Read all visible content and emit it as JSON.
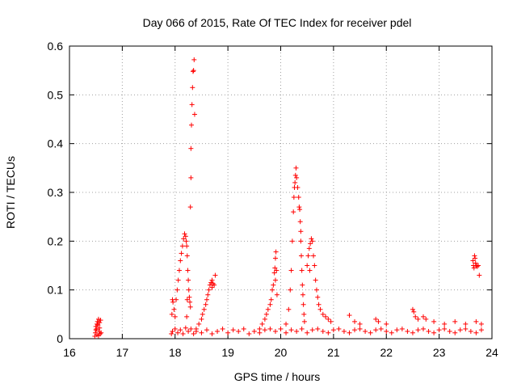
{
  "chart_data": {
    "type": "scatter",
    "title": "Day 066 of 2015, Rate Of TEC Index for receiver pdel",
    "xlabel": "GPS time / hours",
    "ylabel": "ROTI / TECUs",
    "xlim": [
      16,
      24
    ],
    "ylim": [
      0,
      0.6
    ],
    "xticks": [
      "16",
      "17",
      "18",
      "19",
      "20",
      "21",
      "22",
      "23",
      "24"
    ],
    "yticks": [
      "0",
      "0.1",
      "0.2",
      "0.3",
      "0.4",
      "0.5",
      "0.6"
    ],
    "grid": true,
    "marker": "+",
    "series": [
      {
        "name": "ROTI",
        "color": "#ff0000",
        "points": [
          [
            16.48,
            0.005
          ],
          [
            16.49,
            0.012
          ],
          [
            16.5,
            0.018
          ],
          [
            16.5,
            0.025
          ],
          [
            16.51,
            0.02
          ],
          [
            16.52,
            0.03
          ],
          [
            16.53,
            0.035
          ],
          [
            16.54,
            0.028
          ],
          [
            16.55,
            0.04
          ],
          [
            16.56,
            0.015
          ],
          [
            16.57,
            0.022
          ],
          [
            16.58,
            0.01
          ],
          [
            16.59,
            0.038
          ],
          [
            16.6,
            0.012
          ],
          [
            16.52,
            0.008
          ],
          [
            16.55,
            0.006
          ],
          [
            16.57,
            0.033
          ],
          [
            17.93,
            0.01
          ],
          [
            17.94,
            0.05
          ],
          [
            17.95,
            0.08
          ],
          [
            17.96,
            0.075
          ],
          [
            17.98,
            0.06
          ],
          [
            18.0,
            0.045
          ],
          [
            18.02,
            0.08
          ],
          [
            18.04,
            0.1
          ],
          [
            18.06,
            0.12
          ],
          [
            18.08,
            0.14
          ],
          [
            18.1,
            0.16
          ],
          [
            18.12,
            0.175
          ],
          [
            18.14,
            0.19
          ],
          [
            18.16,
            0.205
          ],
          [
            18.18,
            0.215
          ],
          [
            18.2,
            0.21
          ],
          [
            18.21,
            0.2
          ],
          [
            18.22,
            0.19
          ],
          [
            18.23,
            0.17
          ],
          [
            18.24,
            0.14
          ],
          [
            18.25,
            0.12
          ],
          [
            18.26,
            0.1
          ],
          [
            18.27,
            0.085
          ],
          [
            18.28,
            0.075
          ],
          [
            18.29,
            0.065
          ],
          [
            18.23,
            0.08
          ],
          [
            18.22,
            0.045
          ],
          [
            18.29,
            0.27
          ],
          [
            18.3,
            0.33
          ],
          [
            18.3,
            0.39
          ],
          [
            18.31,
            0.438
          ],
          [
            18.32,
            0.48
          ],
          [
            18.33,
            0.515
          ],
          [
            18.34,
            0.548
          ],
          [
            18.35,
            0.55
          ],
          [
            18.36,
            0.572
          ],
          [
            18.37,
            0.46
          ],
          [
            18.4,
            0.02
          ],
          [
            18.45,
            0.03
          ],
          [
            18.5,
            0.04
          ],
          [
            18.52,
            0.05
          ],
          [
            18.55,
            0.06
          ],
          [
            18.58,
            0.07
          ],
          [
            18.6,
            0.08
          ],
          [
            18.62,
            0.09
          ],
          [
            18.64,
            0.1
          ],
          [
            18.66,
            0.11
          ],
          [
            18.68,
            0.115
          ],
          [
            18.7,
            0.12
          ],
          [
            18.72,
            0.113
          ],
          [
            18.74,
            0.11
          ],
          [
            18.76,
            0.13
          ],
          [
            18.7,
            0.105
          ],
          [
            19.6,
            0.02
          ],
          [
            19.65,
            0.03
          ],
          [
            19.7,
            0.04
          ],
          [
            19.73,
            0.05
          ],
          [
            19.76,
            0.06
          ],
          [
            19.8,
            0.07
          ],
          [
            19.82,
            0.08
          ],
          [
            19.84,
            0.1
          ],
          [
            19.86,
            0.11
          ],
          [
            19.88,
            0.135
          ],
          [
            19.89,
            0.145
          ],
          [
            19.9,
            0.165
          ],
          [
            19.91,
            0.178
          ],
          [
            19.92,
            0.14
          ],
          [
            19.9,
            0.12
          ],
          [
            19.93,
            0.09
          ],
          [
            20.1,
            0.03
          ],
          [
            20.15,
            0.06
          ],
          [
            20.18,
            0.1
          ],
          [
            20.2,
            0.14
          ],
          [
            20.22,
            0.2
          ],
          [
            20.24,
            0.26
          ],
          [
            20.25,
            0.29
          ],
          [
            20.26,
            0.31
          ],
          [
            20.27,
            0.32
          ],
          [
            20.28,
            0.335
          ],
          [
            20.29,
            0.35
          ],
          [
            20.3,
            0.33
          ],
          [
            20.32,
            0.31
          ],
          [
            20.34,
            0.29
          ],
          [
            20.35,
            0.27
          ],
          [
            20.36,
            0.265
          ],
          [
            20.37,
            0.24
          ],
          [
            20.38,
            0.2
          ],
          [
            20.39,
            0.17
          ],
          [
            20.4,
            0.14
          ],
          [
            20.41,
            0.11
          ],
          [
            20.42,
            0.09
          ],
          [
            20.43,
            0.07
          ],
          [
            20.44,
            0.05
          ],
          [
            20.45,
            0.035
          ],
          [
            20.38,
            0.22
          ],
          [
            20.5,
            0.15
          ],
          [
            20.52,
            0.17
          ],
          [
            20.54,
            0.185
          ],
          [
            20.56,
            0.195
          ],
          [
            20.58,
            0.205
          ],
          [
            20.6,
            0.2
          ],
          [
            20.62,
            0.17
          ],
          [
            20.64,
            0.15
          ],
          [
            20.66,
            0.12
          ],
          [
            20.68,
            0.1
          ],
          [
            20.7,
            0.085
          ],
          [
            20.72,
            0.07
          ],
          [
            20.75,
            0.06
          ],
          [
            20.8,
            0.05
          ],
          [
            20.85,
            0.045
          ],
          [
            20.9,
            0.04
          ],
          [
            20.95,
            0.035
          ],
          [
            20.55,
            0.14
          ],
          [
            21.3,
            0.048
          ],
          [
            21.4,
            0.035
          ],
          [
            21.5,
            0.03
          ],
          [
            21.8,
            0.04
          ],
          [
            21.85,
            0.035
          ],
          [
            22.0,
            0.03
          ],
          [
            22.5,
            0.06
          ],
          [
            22.52,
            0.055
          ],
          [
            22.55,
            0.045
          ],
          [
            22.6,
            0.04
          ],
          [
            22.7,
            0.045
          ],
          [
            22.75,
            0.04
          ],
          [
            22.9,
            0.035
          ],
          [
            23.1,
            0.03
          ],
          [
            23.3,
            0.035
          ],
          [
            23.5,
            0.03
          ],
          [
            23.7,
            0.035
          ],
          [
            23.8,
            0.03
          ],
          [
            23.64,
            0.16
          ],
          [
            23.65,
            0.15
          ],
          [
            23.66,
            0.145
          ],
          [
            23.67,
            0.17
          ],
          [
            23.68,
            0.165
          ],
          [
            23.69,
            0.155
          ],
          [
            23.7,
            0.15
          ],
          [
            23.72,
            0.148
          ],
          [
            23.74,
            0.15
          ],
          [
            23.76,
            0.13
          ],
          [
            17.95,
            0.015
          ],
          [
            18.0,
            0.02
          ],
          [
            18.05,
            0.012
          ],
          [
            18.1,
            0.018
          ],
          [
            18.15,
            0.01
          ],
          [
            18.2,
            0.022
          ],
          [
            18.25,
            0.015
          ],
          [
            18.3,
            0.02
          ],
          [
            18.35,
            0.01
          ],
          [
            18.4,
            0.015
          ],
          [
            18.5,
            0.012
          ],
          [
            18.6,
            0.018
          ],
          [
            18.7,
            0.01
          ],
          [
            18.8,
            0.015
          ],
          [
            18.9,
            0.02
          ],
          [
            19.0,
            0.012
          ],
          [
            19.1,
            0.018
          ],
          [
            19.2,
            0.015
          ],
          [
            19.3,
            0.02
          ],
          [
            19.4,
            0.01
          ],
          [
            19.5,
            0.015
          ],
          [
            19.6,
            0.012
          ],
          [
            19.7,
            0.018
          ],
          [
            19.8,
            0.02
          ],
          [
            19.9,
            0.015
          ],
          [
            20.0,
            0.02
          ],
          [
            20.1,
            0.012
          ],
          [
            20.2,
            0.018
          ],
          [
            20.3,
            0.015
          ],
          [
            20.4,
            0.02
          ],
          [
            20.5,
            0.012
          ],
          [
            20.6,
            0.018
          ],
          [
            20.7,
            0.02
          ],
          [
            20.8,
            0.015
          ],
          [
            20.9,
            0.012
          ],
          [
            21.0,
            0.018
          ],
          [
            21.1,
            0.02
          ],
          [
            21.2,
            0.015
          ],
          [
            21.3,
            0.012
          ],
          [
            21.4,
            0.018
          ],
          [
            21.5,
            0.02
          ],
          [
            21.6,
            0.015
          ],
          [
            21.7,
            0.012
          ],
          [
            21.8,
            0.018
          ],
          [
            21.9,
            0.02
          ],
          [
            22.0,
            0.015
          ],
          [
            22.1,
            0.012
          ],
          [
            22.2,
            0.018
          ],
          [
            22.3,
            0.02
          ],
          [
            22.4,
            0.015
          ],
          [
            22.5,
            0.012
          ],
          [
            22.6,
            0.018
          ],
          [
            22.7,
            0.02
          ],
          [
            22.8,
            0.015
          ],
          [
            22.9,
            0.012
          ],
          [
            23.0,
            0.018
          ],
          [
            23.1,
            0.02
          ],
          [
            23.2,
            0.015
          ],
          [
            23.3,
            0.012
          ],
          [
            23.4,
            0.018
          ],
          [
            23.5,
            0.02
          ],
          [
            23.6,
            0.015
          ],
          [
            23.7,
            0.012
          ],
          [
            23.8,
            0.018
          ]
        ]
      }
    ]
  }
}
